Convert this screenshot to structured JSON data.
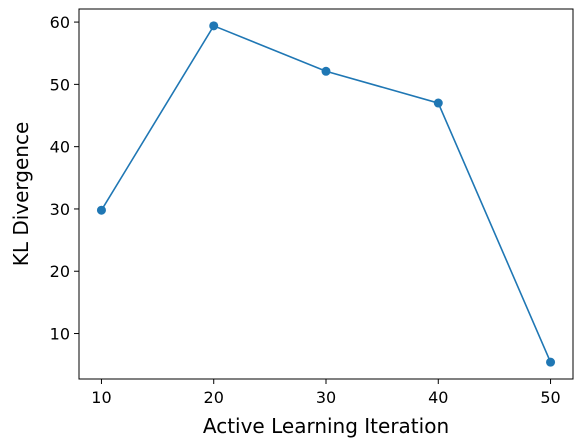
{
  "chart_data": {
    "type": "line",
    "x_label": "Active Learning Iteration",
    "y_label": "KL Divergence",
    "x": [
      10,
      20,
      30,
      40,
      50
    ],
    "series": [
      {
        "color": "#1f77b4",
        "values": [
          29.8,
          59.4,
          52.1,
          47.0,
          5.4
        ]
      }
    ],
    "xlim": [
      8,
      52
    ],
    "xticks": [
      10,
      20,
      30,
      40,
      50
    ],
    "ylim": [
      2.7,
      62.1
    ],
    "yticks": [
      10,
      20,
      30,
      40,
      50,
      60
    ]
  }
}
